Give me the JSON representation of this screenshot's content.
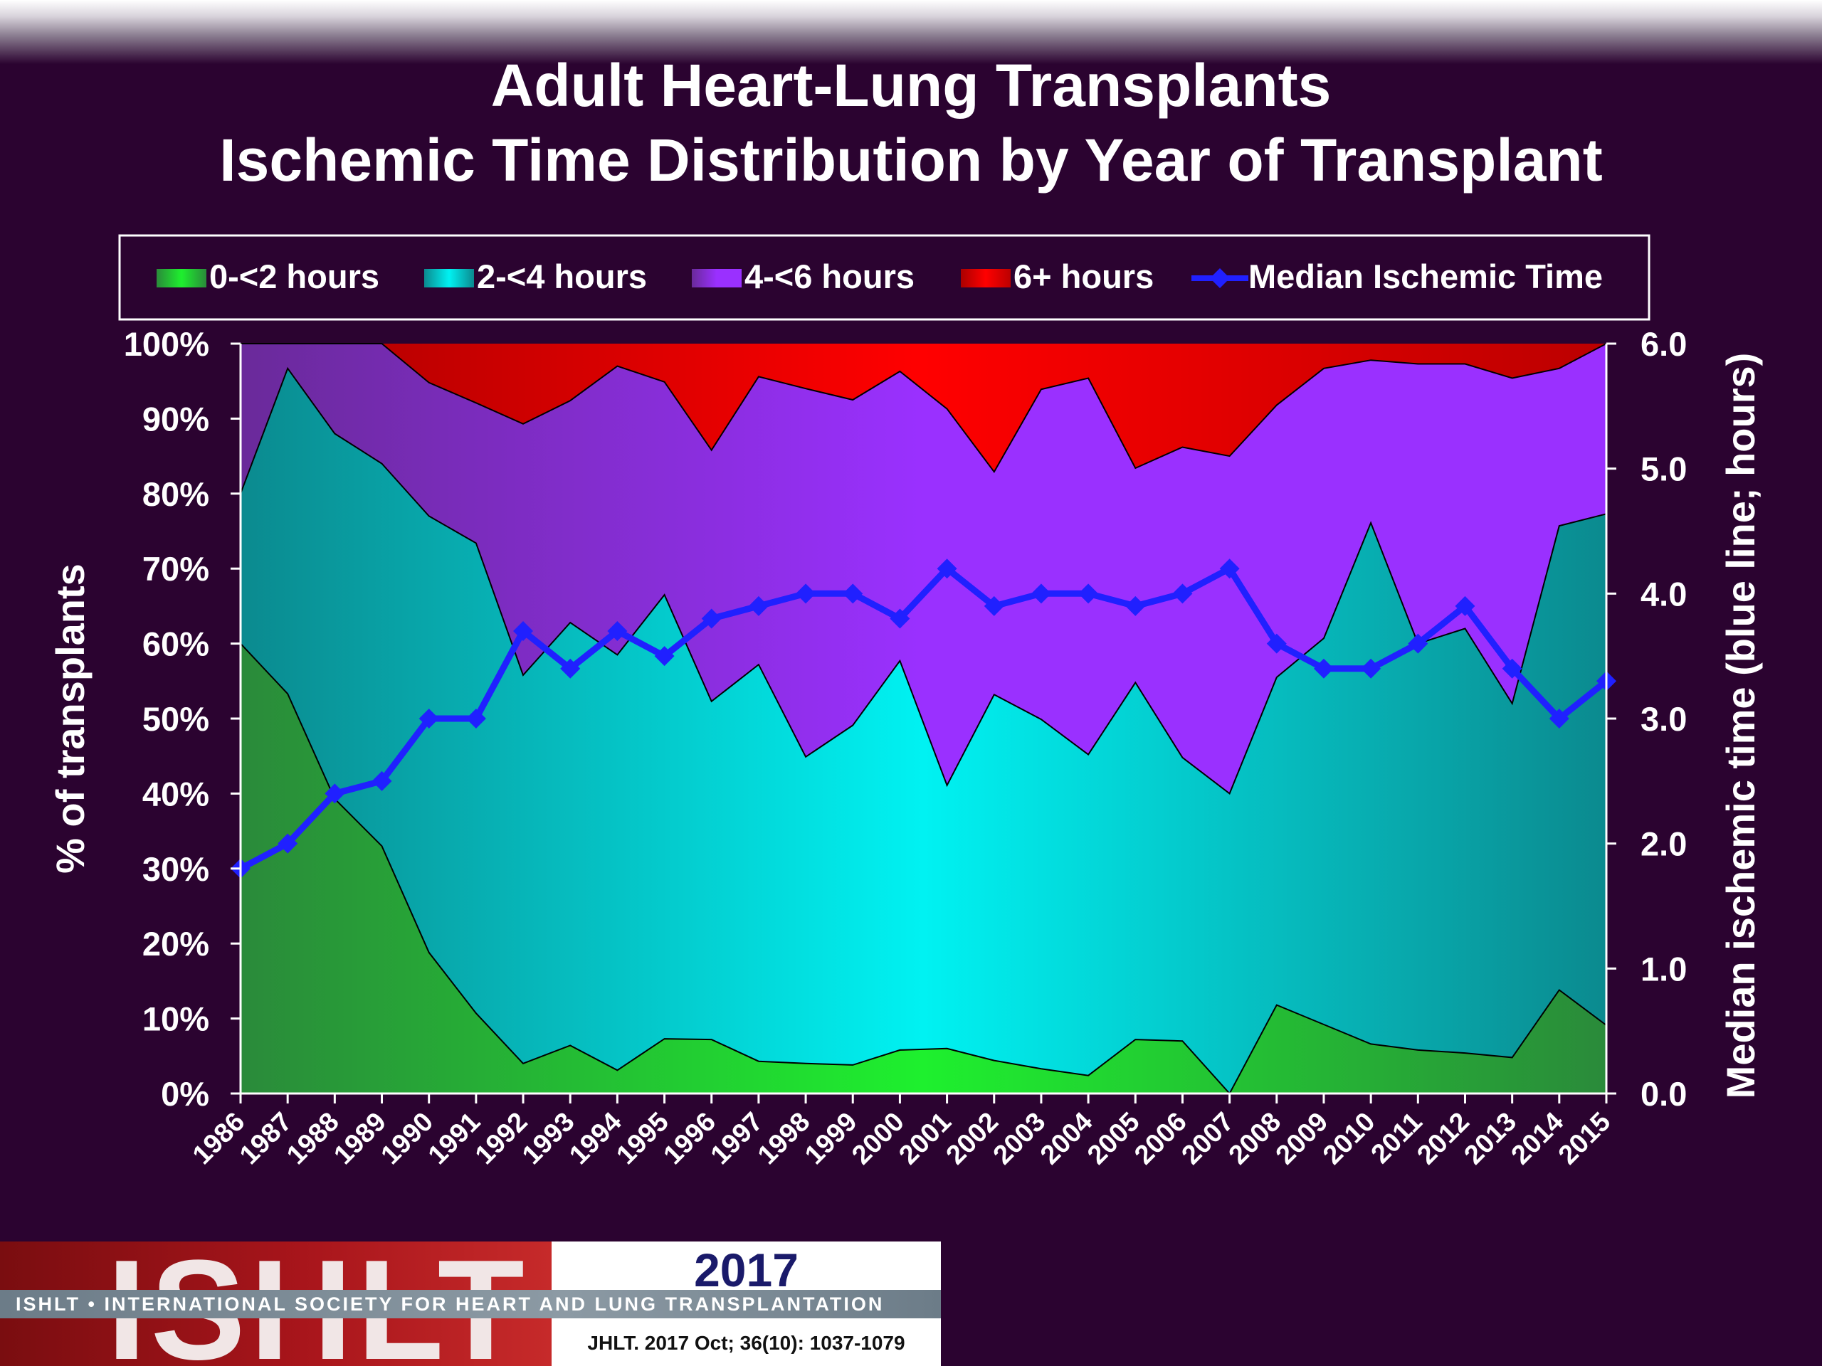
{
  "title_line1": "Adult Heart-Lung Transplants",
  "title_line2": "Ischemic Time Distribution by Year of Transplant",
  "footer": {
    "logo_text": "ISHLT",
    "year": "2017",
    "society": "ISHLT • INTERNATIONAL SOCIETY FOR HEART AND LUNG TRANSPLANTATION",
    "citation": "JHLT. 2017 Oct; 36(10): 1037-1079"
  },
  "colors": {
    "background": "#2b0330",
    "green": "#22dd22",
    "cyan": "#10e8e8",
    "purple": "#9933ff",
    "red": "#ee0000",
    "median_line": "#2020ff"
  },
  "chart_data": {
    "type": "area",
    "stacked": true,
    "xlabel": "",
    "ylabel": "% of transplants",
    "y2label": "Median ischemic time (blue line; hours)",
    "ylim": [
      0,
      100
    ],
    "y2lim": [
      0,
      6
    ],
    "yticks": [
      "0%",
      "10%",
      "20%",
      "30%",
      "40%",
      "50%",
      "60%",
      "70%",
      "80%",
      "90%",
      "100%"
    ],
    "y2ticks": [
      "0.0",
      "1.0",
      "2.0",
      "3.0",
      "4.0",
      "5.0",
      "6.0"
    ],
    "categories": [
      "1986",
      "1987",
      "1988",
      "1989",
      "1990",
      "1991",
      "1992",
      "1993",
      "1994",
      "1995",
      "1996",
      "1997",
      "1998",
      "1999",
      "2000",
      "2001",
      "2002",
      "2003",
      "2004",
      "2005",
      "2006",
      "2007",
      "2008",
      "2009",
      "2010",
      "2011",
      "2012",
      "2013",
      "2014",
      "2015"
    ],
    "series": [
      {
        "name": "0-<2 hours",
        "color": "#22dd22",
        "values": [
          60.0,
          53.3,
          39.3,
          33.0,
          18.8,
          10.7,
          4.0,
          6.4,
          3.1,
          7.3,
          7.2,
          4.3,
          4.0,
          3.8,
          5.8,
          6.0,
          4.4,
          3.3,
          2.4,
          7.2,
          7.0,
          0.0,
          11.8,
          9.2,
          6.6,
          5.8,
          5.4,
          4.8,
          13.8,
          9.1
        ]
      },
      {
        "name": "2-<4 hours",
        "color": "#10e8e8",
        "values": [
          20.0,
          43.4,
          48.7,
          51.0,
          58.2,
          62.7,
          51.8,
          56.4,
          55.4,
          59.2,
          45.1,
          52.9,
          40.9,
          45.3,
          51.9,
          35.1,
          48.8,
          46.6,
          42.8,
          47.6,
          37.8,
          40.0,
          43.7,
          51.5,
          69.5,
          54.2,
          56.6,
          47.2,
          61.9,
          68.2
        ]
      },
      {
        "name": "4-<6 hours",
        "color": "#9933ff",
        "values": [
          20.0,
          3.3,
          12.0,
          16.0,
          17.8,
          18.7,
          33.5,
          29.6,
          38.5,
          28.4,
          33.5,
          38.4,
          49.1,
          43.4,
          38.6,
          50.2,
          29.7,
          44.0,
          50.2,
          28.6,
          41.4,
          45.0,
          36.3,
          36.0,
          21.7,
          37.3,
          35.3,
          43.4,
          21.0,
          22.7
        ]
      },
      {
        "name": "6+ hours",
        "color": "#ee0000",
        "values": [
          0.0,
          0.0,
          0.0,
          0.0,
          5.2,
          7.9,
          10.7,
          7.6,
          3.0,
          5.1,
          14.2,
          4.4,
          6.0,
          7.5,
          3.7,
          8.7,
          17.1,
          6.1,
          4.6,
          16.6,
          13.8,
          15.0,
          8.2,
          3.3,
          2.2,
          2.7,
          2.7,
          4.6,
          3.3,
          0.0
        ]
      }
    ],
    "line": {
      "name": "Median Ischemic Time",
      "axis": "right",
      "color": "#2020ff",
      "values": [
        1.8,
        2.0,
        2.4,
        2.5,
        3.0,
        3.0,
        3.7,
        3.4,
        3.7,
        3.5,
        3.8,
        3.9,
        4.0,
        4.0,
        3.8,
        4.2,
        3.9,
        4.0,
        4.0,
        3.9,
        4.0,
        4.2,
        3.6,
        3.4,
        3.4,
        3.6,
        3.9,
        3.4,
        3.0,
        3.3
      ]
    },
    "legend_position": "top",
    "grid": false
  }
}
